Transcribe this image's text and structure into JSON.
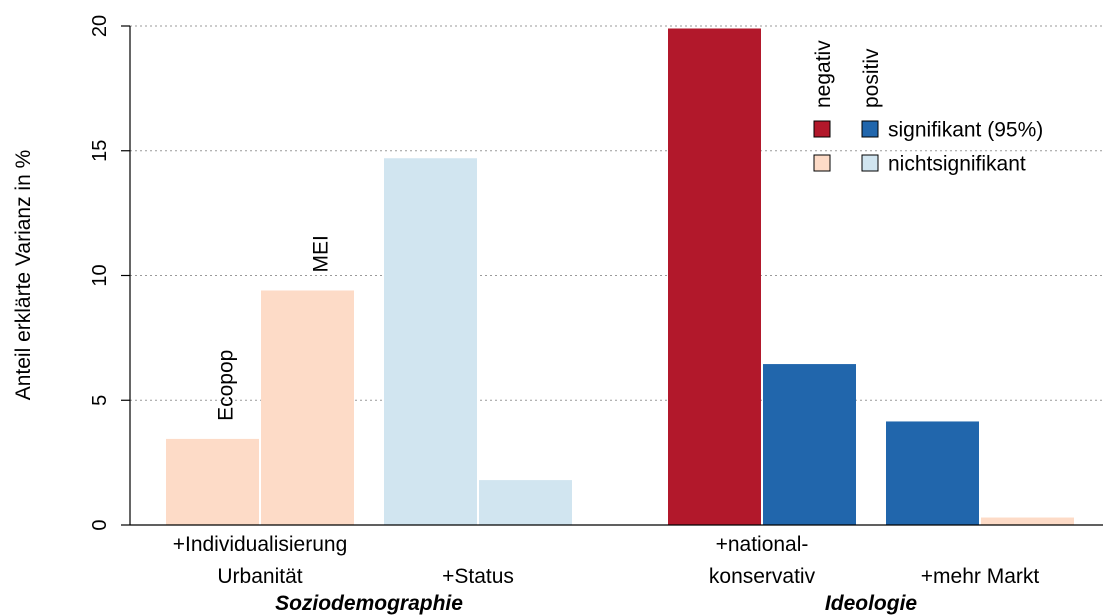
{
  "chart_data": {
    "type": "bar",
    "ylabel": "Anteil erklärte Varianz in %",
    "ylim": [
      0,
      20
    ],
    "yticks": [
      0,
      5,
      10,
      15,
      20
    ],
    "grid": "horizontal dotted",
    "series": [
      {
        "name": "Ecopop",
        "label_on": "Individualisierung"
      },
      {
        "name": "MEI",
        "label_on": "Individualisierung"
      }
    ],
    "categories": [
      {
        "label_lines": [
          "+Individualisierung",
          "Urbanität"
        ],
        "values": [
          3.45,
          9.4
        ],
        "fills": [
          "#FDDBC7",
          "#FDDBC7"
        ]
      },
      {
        "label_lines": [
          "+Status"
        ],
        "values": [
          14.7,
          1.8
        ],
        "fills": [
          "#D1E5F0",
          "#D1E5F0"
        ]
      },
      {
        "label_lines": [
          "+national-",
          "konservativ"
        ],
        "values": [
          19.9,
          6.45
        ],
        "fills": [
          "#B2182B",
          "#2166AC"
        ]
      },
      {
        "label_lines": [
          "+mehr Markt"
        ],
        "values": [
          4.15,
          0.3
        ],
        "fills": [
          "#2166AC",
          "#FDDBC7"
        ]
      }
    ],
    "groups": [
      {
        "label": "Soziodemographie"
      },
      {
        "label": "Ideologie"
      }
    ],
    "legend": {
      "placement": "top-right",
      "column_headers": [
        "negativ",
        "positiv"
      ],
      "rows": [
        {
          "label": "signifikant (95%)",
          "colors": [
            "#B2182B",
            "#2166AC"
          ]
        },
        {
          "label": "nichtsignifikant",
          "colors": [
            "#FDDBC7",
            "#D1E5F0"
          ]
        }
      ]
    }
  }
}
